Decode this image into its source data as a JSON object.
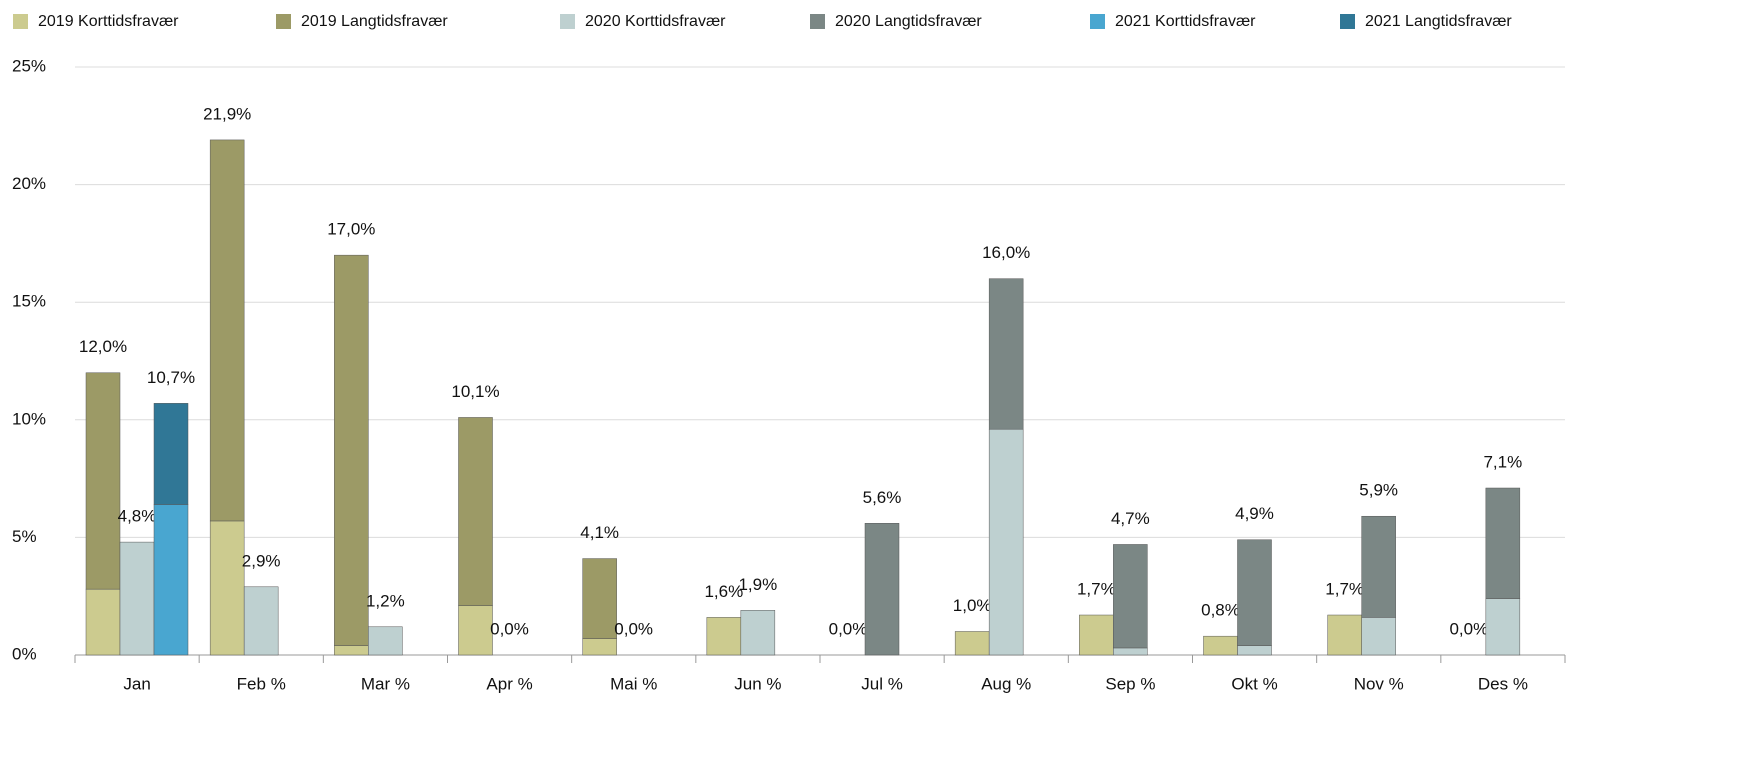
{
  "chart_data": {
    "type": "stacked-grouped-bar",
    "categories": [
      "Jan",
      "Feb %",
      "Mar %",
      "Apr %",
      "Mai %",
      "Jun %",
      "Jul %",
      "Aug %",
      "Sep %",
      "Okt %",
      "Nov %",
      "Des %"
    ],
    "series": [
      {
        "name": "2019 Korttidsfravær",
        "color": "#cccb8f",
        "values": [
          2.8,
          5.7,
          0.4,
          2.1,
          0.7,
          1.6,
          0,
          1.0,
          1.7,
          0.8,
          1.7,
          0
        ]
      },
      {
        "name": "2019 Langtidsfravær",
        "color": "#9c9a66",
        "values": [
          9.2,
          16.2,
          16.6,
          8.0,
          3.4,
          null,
          null,
          null,
          null,
          null,
          null,
          null
        ]
      },
      {
        "name": "2020 Korttidsfravær",
        "color": "#bed0d0",
        "values": [
          4.8,
          2.9,
          1.2,
          0,
          0,
          1.9,
          0,
          9.6,
          0.3,
          0.4,
          1.6,
          2.4
        ]
      },
      {
        "name": "2020 Langtidsfravær",
        "color": "#7b8785",
        "values": [
          null,
          null,
          null,
          null,
          null,
          null,
          5.6,
          6.4,
          4.4,
          4.5,
          4.3,
          4.7
        ]
      },
      {
        "name": "2021 Korttidsfravær",
        "color": "#49a6d0",
        "values": [
          6.4,
          null,
          null,
          null,
          null,
          null,
          null,
          null,
          null,
          null,
          null,
          null
        ]
      },
      {
        "name": "2021 Langtidsfravær",
        "color": "#307796",
        "values": [
          4.3,
          null,
          null,
          null,
          null,
          null,
          null,
          null,
          null,
          null,
          null,
          null
        ]
      }
    ],
    "stack_labels": [
      [
        "12,0%",
        "21,9%",
        "17,0%",
        "10,1%",
        "4,1%",
        "1,6%",
        "0,0%",
        "1,0%",
        "1,7%",
        "0,8%",
        "1,7%",
        "0,0%"
      ],
      [
        "4,8%",
        "2,9%",
        "1,2%",
        "0,0%",
        "0,0%",
        "1,9%",
        "5,6%",
        "16,0%",
        "4,7%",
        "4,9%",
        "5,9%",
        "7,1%"
      ],
      [
        "10,7%",
        null,
        null,
        null,
        null,
        null,
        null,
        null,
        null,
        null,
        null,
        null
      ]
    ],
    "ylim": [
      0,
      25
    ],
    "yticks": [
      {
        "value": 0,
        "label": "0%"
      },
      {
        "value": 5,
        "label": "5%"
      },
      {
        "value": 10,
        "label": "10%"
      },
      {
        "value": 15,
        "label": "15%"
      },
      {
        "value": 20,
        "label": "20%"
      },
      {
        "value": 25,
        "label": "25%"
      }
    ],
    "grid": true,
    "legend": "top"
  }
}
